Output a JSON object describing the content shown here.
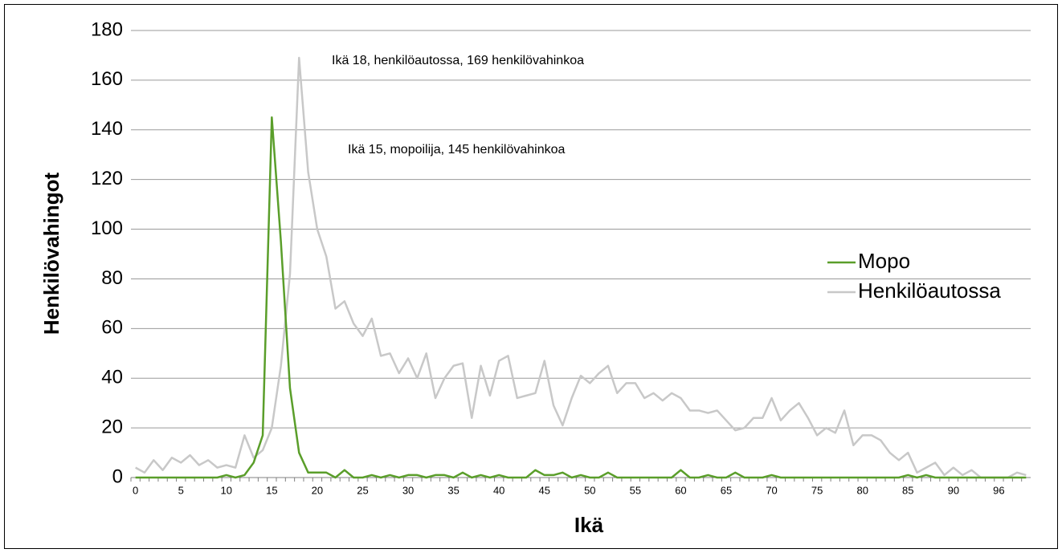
{
  "chart_data": {
    "type": "line",
    "xlabel": "Ikä",
    "ylabel": "Henkilövahingot",
    "annotations": [
      "Ikä 18, henkilöautossa,  169 henkilövahinkoa",
      "Ikä 15, mopoilija, 145 henkilövahinkoa"
    ],
    "categories": [
      "0",
      null,
      null,
      null,
      null,
      "5",
      null,
      null,
      null,
      null,
      "10",
      null,
      null,
      null,
      null,
      "15",
      null,
      null,
      null,
      null,
      "20",
      null,
      null,
      null,
      null,
      "25",
      null,
      null,
      null,
      null,
      "30",
      null,
      null,
      null,
      null,
      "35",
      null,
      null,
      null,
      null,
      "40",
      null,
      null,
      null,
      null,
      "45",
      null,
      null,
      null,
      null,
      "50",
      null,
      null,
      null,
      null,
      "55",
      null,
      null,
      null,
      null,
      "60",
      null,
      null,
      null,
      null,
      "65",
      null,
      null,
      null,
      null,
      "70",
      null,
      null,
      null,
      null,
      "75",
      null,
      null,
      null,
      null,
      "80",
      null,
      null,
      null,
      null,
      "85",
      null,
      null,
      null,
      null,
      "90",
      null,
      null,
      null,
      null,
      "96",
      null,
      null,
      null
    ],
    "series": [
      {
        "name": "Mopo",
        "color": "#5a9e2a",
        "values": [
          0,
          0,
          0,
          0,
          0,
          0,
          0,
          0,
          0,
          0,
          1,
          0,
          1,
          6,
          17,
          145,
          95,
          36,
          10,
          2,
          2,
          2,
          0,
          3,
          0,
          0,
          1,
          0,
          1,
          0,
          1,
          1,
          0,
          1,
          1,
          0,
          2,
          0,
          1,
          0,
          1,
          0,
          0,
          0,
          3,
          1,
          1,
          2,
          0,
          1,
          0,
          0,
          2,
          0,
          0,
          0,
          0,
          0,
          0,
          0,
          3,
          0,
          0,
          1,
          0,
          0,
          2,
          0,
          0,
          0,
          1,
          0,
          0,
          0,
          0,
          0,
          0,
          0,
          0,
          0,
          0,
          0,
          0,
          0,
          0,
          1,
          0,
          1,
          0,
          0,
          0,
          0,
          0,
          0,
          0,
          0,
          0,
          0,
          0
        ]
      },
      {
        "name": "Henkilöautossa",
        "color": "#c8c8c8",
        "values": [
          4,
          2,
          7,
          3,
          8,
          6,
          9,
          5,
          7,
          4,
          5,
          4,
          17,
          8,
          11,
          20,
          45,
          82,
          169,
          123,
          100,
          89,
          68,
          71,
          62,
          57,
          64,
          49,
          50,
          42,
          48,
          40,
          50,
          32,
          40,
          45,
          46,
          24,
          45,
          33,
          47,
          49,
          32,
          33,
          34,
          47,
          29,
          21,
          32,
          41,
          38,
          42,
          45,
          34,
          38,
          38,
          32,
          34,
          31,
          34,
          32,
          27,
          27,
          26,
          27,
          23,
          19,
          20,
          24,
          24,
          32,
          23,
          27,
          30,
          24,
          17,
          20,
          18,
          27,
          13,
          17,
          17,
          15,
          10,
          7,
          10,
          2,
          4,
          6,
          1,
          4,
          1,
          3,
          0,
          0,
          0,
          0,
          2,
          1
        ]
      }
    ],
    "ylim": [
      0,
      180
    ],
    "yticks": [
      0,
      20,
      40,
      60,
      80,
      100,
      120,
      140,
      160,
      180
    ],
    "grid": true,
    "legend": "right"
  }
}
